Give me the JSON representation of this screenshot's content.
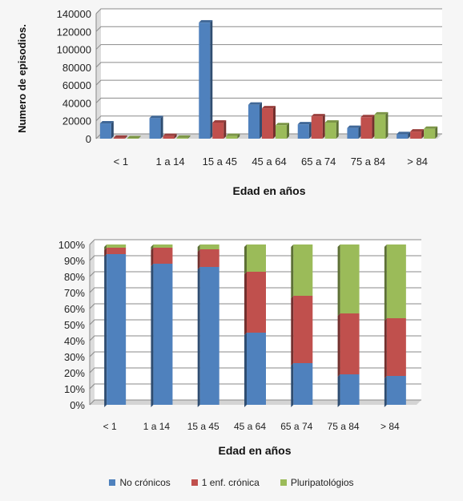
{
  "colors": {
    "no_cronicos": "#4f81bd",
    "una_enf": "#c0504d",
    "pluri": "#9bbb59"
  },
  "chart_data": [
    {
      "type": "bar",
      "ylabel": "Numero de  episodios.",
      "xlabel": "Edad en años",
      "ylim": [
        0,
        140000
      ],
      "yticks": [
        "0",
        "20000",
        "40000",
        "60000",
        "80000",
        "100000",
        "120000",
        "140000"
      ],
      "categories": [
        "< 1",
        "1 a 14",
        "15 a 45",
        "45 a 64",
        "65 a 74",
        "75 a 84",
        "> 84"
      ],
      "series": [
        {
          "values": [
            17000,
            23000,
            130000,
            38000,
            16000,
            12000,
            5000
          ]
        },
        {
          "values": [
            1000,
            3000,
            18000,
            34000,
            25000,
            24000,
            8000
          ]
        },
        {
          "values": [
            500,
            1000,
            3000,
            15000,
            18000,
            27000,
            11000
          ]
        }
      ],
      "grid": true
    },
    {
      "type": "bar",
      "stacked": "percent",
      "xlabel": "Edad en años",
      "ylim": [
        0,
        100
      ],
      "yticks": [
        "0%",
        "10%",
        "20%",
        "30%",
        "40%",
        "50%",
        "60%",
        "70%",
        "80%",
        "90%",
        "100%"
      ],
      "categories": [
        "< 1",
        "1 a 14",
        "15 a 45",
        "45 a 64",
        "65 a 74",
        "75 a 84",
        "> 84"
      ],
      "series": [
        {
          "name": "No crónicos",
          "values": [
            94,
            88,
            86,
            45,
            26,
            19,
            18
          ]
        },
        {
          "name": "1 enf.  crónica",
          "values": [
            4,
            10,
            11,
            38,
            42,
            38,
            36
          ]
        },
        {
          "name": "Pluripatológios",
          "values": [
            2,
            2,
            3,
            17,
            32,
            43,
            46
          ]
        }
      ],
      "grid": true,
      "legend": "bottom"
    }
  ]
}
